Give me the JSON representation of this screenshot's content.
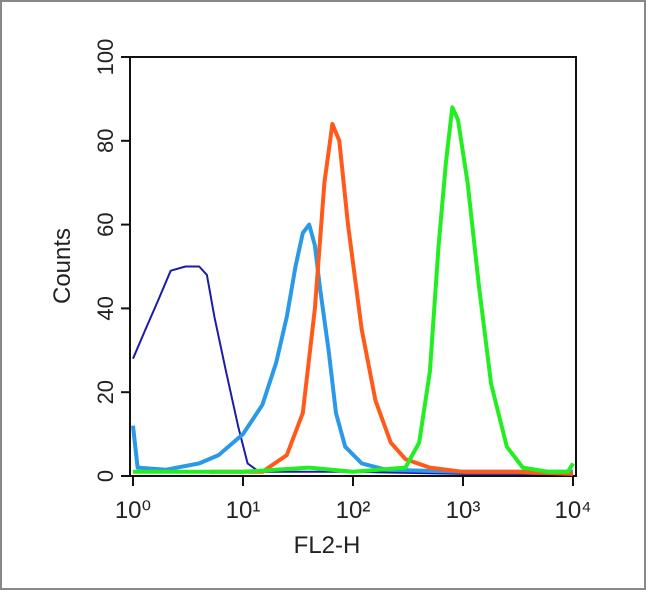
{
  "chart_data": {
    "type": "line",
    "x_label": "FL2-H",
    "y_label": "Counts",
    "xscale": "log",
    "xlim": [
      1,
      10000
    ],
    "ylim": [
      0,
      100
    ],
    "xticks": [
      {
        "value": 1,
        "label": "10⁰"
      },
      {
        "value": 10,
        "label": "10¹"
      },
      {
        "value": 100,
        "label": "10²"
      },
      {
        "value": 1000,
        "label": "10³"
      },
      {
        "value": 10000,
        "label": "10⁴"
      }
    ],
    "yticks": [
      0,
      20,
      40,
      60,
      80,
      100
    ],
    "series": [
      {
        "color": "#1c1ca8",
        "width": 2,
        "x": [
          1,
          1.3,
          1.7,
          2.2,
          3,
          4,
          4.7,
          5.5,
          7,
          9,
          11,
          14,
          30,
          100,
          1000,
          10000
        ],
        "values": [
          28,
          35,
          42,
          49,
          50,
          50,
          48,
          38,
          25,
          12,
          3,
          1,
          1,
          1,
          0.5,
          0.5
        ]
      },
      {
        "color": "#2a9ae8",
        "width": 4,
        "x": [
          1,
          1.1,
          2,
          4,
          6,
          10,
          15,
          20,
          25,
          30,
          35,
          40,
          45,
          50,
          60,
          70,
          85,
          120,
          200,
          1000,
          10000
        ],
        "values": [
          12,
          2,
          1.5,
          3,
          5,
          10,
          17,
          27,
          38,
          50,
          58,
          60,
          55,
          45,
          30,
          15,
          7,
          3,
          1.5,
          1,
          1
        ]
      },
      {
        "color": "#ff5a1a",
        "width": 4,
        "x": [
          5,
          15,
          25,
          35,
          45,
          55,
          65,
          75,
          90,
          120,
          160,
          220,
          300,
          500,
          1000,
          3000,
          10000
        ],
        "values": [
          1,
          1,
          5,
          15,
          40,
          70,
          84,
          80,
          60,
          35,
          18,
          8,
          4,
          2,
          1,
          1,
          0.5
        ]
      },
      {
        "color": "#22ee22",
        "width": 4,
        "x": [
          1,
          10,
          40,
          100,
          300,
          400,
          500,
          600,
          700,
          800,
          900,
          1100,
          1400,
          1800,
          2500,
          3500,
          6000,
          9000,
          10000
        ],
        "values": [
          1,
          1,
          2,
          1,
          2,
          8,
          25,
          55,
          75,
          88,
          85,
          70,
          45,
          22,
          7,
          2,
          1,
          1,
          3
        ]
      }
    ]
  }
}
